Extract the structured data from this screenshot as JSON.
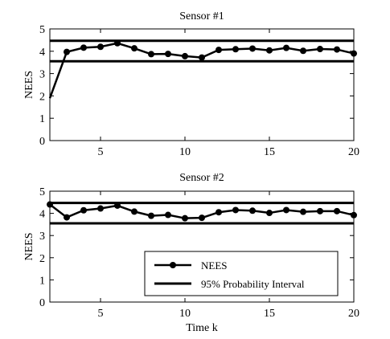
{
  "chart_data": [
    {
      "type": "line",
      "title": "Sensor #1",
      "xlabel": "",
      "ylabel": "NEES",
      "xlim": [
        2,
        20
      ],
      "ylim": [
        0,
        5
      ],
      "xticks": [
        5,
        10,
        15,
        20
      ],
      "yticks": [
        0,
        1,
        2,
        3,
        4,
        5
      ],
      "x": [
        2,
        3,
        4,
        5,
        6,
        7,
        8,
        9,
        10,
        11,
        12,
        13,
        14,
        15,
        16,
        17,
        18,
        19,
        20
      ],
      "series": [
        {
          "name": "NEES",
          "values": [
            1.9,
            3.97,
            4.16,
            4.2,
            4.36,
            4.13,
            3.87,
            3.88,
            3.78,
            3.72,
            4.06,
            4.09,
            4.12,
            4.04,
            4.15,
            4.02,
            4.1,
            4.08,
            3.9
          ]
        }
      ],
      "interval": {
        "name": "95% Probability Interval",
        "lower": 3.55,
        "upper": 4.47
      },
      "grid": false
    },
    {
      "type": "line",
      "title": "Sensor #2",
      "xlabel": "Time k",
      "ylabel": "NEES",
      "xlim": [
        2,
        20
      ],
      "ylim": [
        0,
        5
      ],
      "xticks": [
        5,
        10,
        15,
        20
      ],
      "yticks": [
        0,
        1,
        2,
        3,
        4,
        5
      ],
      "x": [
        2,
        3,
        4,
        5,
        6,
        7,
        8,
        9,
        10,
        11,
        12,
        13,
        14,
        15,
        16,
        17,
        18,
        19,
        20
      ],
      "series": [
        {
          "name": "NEES",
          "values": [
            4.4,
            3.82,
            4.14,
            4.22,
            4.35,
            4.08,
            3.89,
            3.93,
            3.78,
            3.8,
            4.05,
            4.15,
            4.12,
            4.02,
            4.15,
            4.07,
            4.1,
            4.1,
            3.92
          ]
        }
      ],
      "interval": {
        "name": "95% Probability Interval",
        "lower": 3.55,
        "upper": 4.47
      },
      "legend": {
        "position": "lower-right",
        "entries": [
          "NEES",
          "95% Probability Interval"
        ]
      },
      "grid": false
    }
  ]
}
